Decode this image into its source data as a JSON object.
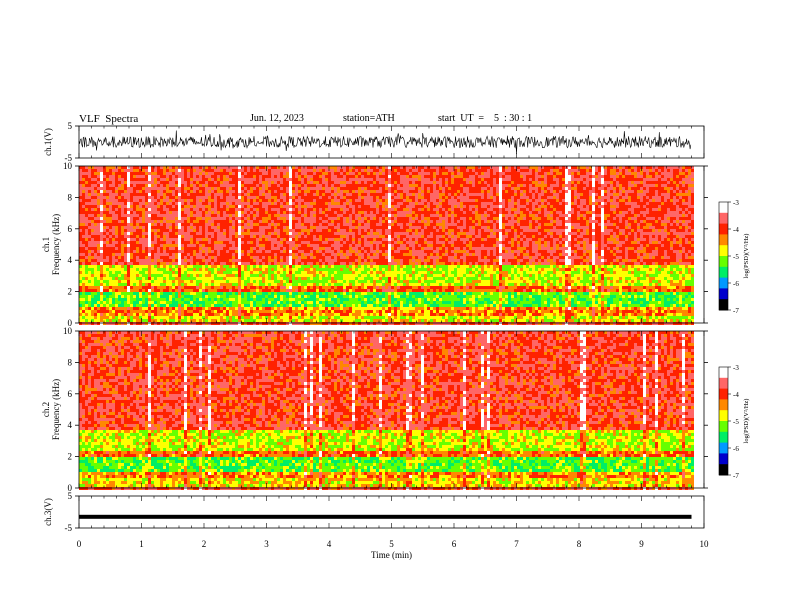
{
  "header": {
    "title": "VLF  Spectra",
    "date": "Jun. 12, 2023",
    "station": "station=ATH",
    "start": "start  UT  =    5  : 30 : 1"
  },
  "colors": {
    "psd_scale": [
      "#000000",
      "#0000cc",
      "#0099ff",
      "#00ee66",
      "#66ff00",
      "#ffff00",
      "#ff8800",
      "#ff2200",
      "#ff6666",
      "#ffffff"
    ],
    "trace": "#000000"
  },
  "chart_data": [
    {
      "type": "line",
      "panel": "ch1-waveform",
      "ylabel": "ch.1(V)",
      "x": [
        0,
        9.8
      ],
      "ylim": [
        -5,
        5
      ],
      "yticks": [
        "5",
        "-5"
      ],
      "noise_range_V": [
        -1.8,
        1.8
      ]
    },
    {
      "type": "heatmap",
      "panel": "ch1-spectrogram",
      "ylabel_top": "ch.1",
      "ylabel": "Frequency  (kHz)",
      "xlim": [
        0,
        9.8
      ],
      "ylim": [
        0,
        10
      ],
      "yticks": [
        "0",
        "2",
        "4",
        "6",
        "8",
        "10"
      ],
      "bands": [
        {
          "from_kHz": 0.0,
          "to_kHz": 0.5,
          "log_psd": -4.8
        },
        {
          "from_kHz": 0.5,
          "to_kHz": 1.0,
          "log_psd": -4.4
        },
        {
          "from_kHz": 1.0,
          "to_kHz": 2.0,
          "log_psd": -5.3
        },
        {
          "from_kHz": 2.0,
          "to_kHz": 2.4,
          "log_psd": -4.2
        },
        {
          "from_kHz": 2.4,
          "to_kHz": 3.7,
          "log_psd": -4.9
        },
        {
          "from_kHz": 3.7,
          "to_kHz": 10.0,
          "log_psd": -3.9
        }
      ],
      "colorbar": {
        "label": "log(PSD)(V²/Hz)",
        "ticks": [
          "-3",
          "-4",
          "-5",
          "-6",
          "-7"
        ],
        "range": [
          -7,
          -3
        ]
      }
    },
    {
      "type": "heatmap",
      "panel": "ch2-spectrogram",
      "ylabel_top": "ch.2",
      "ylabel": "Frequency  (kHz)",
      "xlim": [
        0,
        9.8
      ],
      "ylim": [
        0,
        10
      ],
      "yticks": [
        "0",
        "2",
        "4",
        "6",
        "8",
        "10"
      ],
      "bands": [
        {
          "from_kHz": 0.0,
          "to_kHz": 0.6,
          "log_psd": -4.7
        },
        {
          "from_kHz": 0.6,
          "to_kHz": 1.0,
          "log_psd": -4.4
        },
        {
          "from_kHz": 1.0,
          "to_kHz": 1.9,
          "log_psd": -5.3
        },
        {
          "from_kHz": 1.9,
          "to_kHz": 2.3,
          "log_psd": -4.2
        },
        {
          "from_kHz": 2.3,
          "to_kHz": 3.6,
          "log_psd": -4.9
        },
        {
          "from_kHz": 3.6,
          "to_kHz": 10.0,
          "log_psd": -3.9
        }
      ],
      "colorbar": {
        "label": "log(PSD)(V²/Hz)",
        "ticks": [
          "-3",
          "-4",
          "-5",
          "-6",
          "-7"
        ],
        "range": [
          -7,
          -3
        ]
      }
    },
    {
      "type": "line",
      "panel": "ch3-waveform",
      "ylabel": "ch.3(V)",
      "x": [
        0,
        9.8
      ],
      "ylim": [
        -5,
        5
      ],
      "yticks": [
        "5",
        "-5"
      ],
      "value_V": -1.5
    }
  ],
  "xaxis": {
    "label": "Time  (min)",
    "ticks": [
      "0",
      "1",
      "2",
      "3",
      "4",
      "5",
      "6",
      "7",
      "8",
      "9",
      "10"
    ],
    "range": [
      0,
      10
    ]
  }
}
